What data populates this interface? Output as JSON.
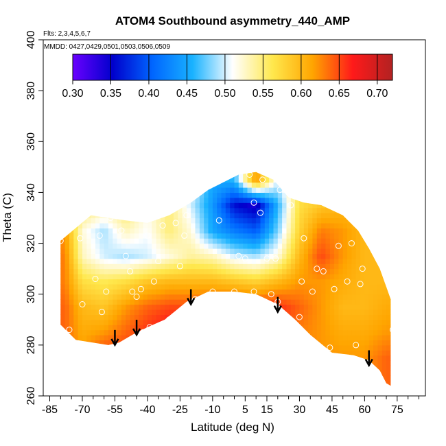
{
  "chart_data": {
    "type": "heatmap",
    "title": "ATOM4 Southbound asymmetry_440_AMP",
    "flights_label": "Flts: 2,3,4,5,6,7",
    "dates_label": "MMDD: 0427,0429,0501,0503,0506,0509",
    "xlabel": "Latitude (deg N)",
    "ylabel": "Theta (C)",
    "xlim": [
      -88,
      88
    ],
    "ylim": [
      260,
      400
    ],
    "x_ticks": [
      -85,
      -70,
      -55,
      -40,
      -25,
      -10,
      5,
      15,
      30,
      45,
      60,
      75
    ],
    "x_minor_ticks": [
      -80,
      -75,
      -65,
      -60,
      -50,
      -45,
      -35,
      -30,
      -20,
      -15,
      -5,
      0,
      10,
      20,
      25,
      35,
      40,
      50,
      55,
      65,
      70,
      80,
      85
    ],
    "y_ticks": [
      260,
      280,
      300,
      320,
      340,
      360,
      380,
      400
    ],
    "colorbar": {
      "range": [
        0.3,
        0.72
      ],
      "ticks": [
        "0.30",
        "0.35",
        "0.40",
        "0.45",
        "0.50",
        "0.55",
        "0.60",
        "0.65",
        "0.70"
      ],
      "tick_values": [
        0.3,
        0.35,
        0.4,
        0.45,
        0.5,
        0.55,
        0.6,
        0.65,
        0.7
      ],
      "colors": [
        "#6a00ff",
        "#0000cc",
        "#0066ff",
        "#19b2ff",
        "#ffffff",
        "#ffe84d",
        "#ffa500",
        "#ff1a1a",
        "#b22222"
      ]
    },
    "field": {
      "lat_grid": [
        -78,
        -70,
        -60,
        -50,
        -40,
        -30,
        -20,
        -10,
        0,
        10,
        20,
        30,
        40,
        50,
        60,
        70
      ],
      "theta_grid": [
        275,
        285,
        295,
        305,
        315,
        325,
        335,
        345
      ],
      "values": [
        [
          0.64,
          0.62,
          0.66,
          0.66,
          0.67,
          0.68,
          0.66,
          0.64,
          0.67,
          0.66,
          0.66,
          0.64,
          0.62,
          0.62,
          0.62,
          0.64
        ],
        [
          0.64,
          0.61,
          0.62,
          0.64,
          0.66,
          0.68,
          0.67,
          0.64,
          0.66,
          0.66,
          0.66,
          0.63,
          0.62,
          0.61,
          0.61,
          0.62
        ],
        [
          0.64,
          0.6,
          0.59,
          0.62,
          0.64,
          0.65,
          0.65,
          0.65,
          0.66,
          0.66,
          0.66,
          0.64,
          0.62,
          0.6,
          0.6,
          0.61
        ],
        [
          0.63,
          0.57,
          0.56,
          0.57,
          0.59,
          0.6,
          0.6,
          0.6,
          0.59,
          0.58,
          0.6,
          0.62,
          0.62,
          0.61,
          0.6,
          0.6
        ],
        [
          0.63,
          0.53,
          0.5,
          0.49,
          0.5,
          0.52,
          0.54,
          0.53,
          0.5,
          0.49,
          0.52,
          0.6,
          0.65,
          0.62,
          0.6,
          0.6
        ],
        [
          0.62,
          0.52,
          0.49,
          0.53,
          0.51,
          0.55,
          0.52,
          0.45,
          0.42,
          0.4,
          0.48,
          0.58,
          0.63,
          0.62,
          0.6,
          0.6
        ],
        [
          0.6,
          0.56,
          0.54,
          0.56,
          0.52,
          0.55,
          0.5,
          0.44,
          0.36,
          0.34,
          0.46,
          0.57,
          0.59,
          0.6,
          0.6,
          0.6
        ],
        [
          0.6,
          0.56,
          0.55,
          0.55,
          0.53,
          0.53,
          0.51,
          0.45,
          0.46,
          0.62,
          0.5,
          0.56,
          0.58,
          0.6,
          0.6,
          0.6
        ]
      ],
      "lower_boundary": [
        [
          -80,
          288
        ],
        [
          -73,
          282
        ],
        [
          -58,
          280
        ],
        [
          -53,
          281
        ],
        [
          -47,
          284
        ],
        [
          -40,
          287
        ],
        [
          -32,
          290
        ],
        [
          -22,
          297
        ],
        [
          -12,
          301
        ],
        [
          0,
          301
        ],
        [
          10,
          300
        ],
        [
          20,
          296
        ],
        [
          28,
          290
        ],
        [
          35,
          284
        ],
        [
          45,
          277
        ],
        [
          55,
          276
        ],
        [
          62,
          274
        ],
        [
          67,
          270
        ],
        [
          70,
          265
        ],
        [
          72,
          264
        ]
      ],
      "upper_boundary": [
        [
          -80,
          321
        ],
        [
          -73,
          326
        ],
        [
          -66,
          331
        ],
        [
          -58,
          330
        ],
        [
          -50,
          329
        ],
        [
          -40,
          328
        ],
        [
          -30,
          331
        ],
        [
          -20,
          336
        ],
        [
          -12,
          341
        ],
        [
          -5,
          344
        ],
        [
          2,
          347
        ],
        [
          10,
          348
        ],
        [
          18,
          345
        ],
        [
          25,
          338
        ],
        [
          32,
          336
        ],
        [
          40,
          335
        ],
        [
          50,
          331
        ],
        [
          57,
          325
        ],
        [
          62,
          318
        ],
        [
          67,
          310
        ],
        [
          72,
          298
        ]
      ]
    },
    "observation_points": [
      {
        "lat": -80,
        "theta": 321
      },
      {
        "lat": -76,
        "theta": 286
      },
      {
        "lat": -71,
        "theta": 322
      },
      {
        "lat": -70,
        "theta": 296
      },
      {
        "lat": -64,
        "theta": 306
      },
      {
        "lat": -62,
        "theta": 323
      },
      {
        "lat": -61,
        "theta": 293
      },
      {
        "lat": -59,
        "theta": 301
      },
      {
        "lat": -57,
        "theta": 330
      },
      {
        "lat": -55,
        "theta": 279
      },
      {
        "lat": -52,
        "theta": 325
      },
      {
        "lat": -50,
        "theta": 315
      },
      {
        "lat": -48,
        "theta": 309
      },
      {
        "lat": -47,
        "theta": 301
      },
      {
        "lat": -45,
        "theta": 299
      },
      {
        "lat": -43,
        "theta": 302
      },
      {
        "lat": -42,
        "theta": 285
      },
      {
        "lat": -40,
        "theta": 323
      },
      {
        "lat": -39,
        "theta": 287
      },
      {
        "lat": -37,
        "theta": 305
      },
      {
        "lat": -35,
        "theta": 313
      },
      {
        "lat": -33,
        "theta": 327
      },
      {
        "lat": -30,
        "theta": 290
      },
      {
        "lat": -27,
        "theta": 328
      },
      {
        "lat": -25,
        "theta": 311
      },
      {
        "lat": -23,
        "theta": 323
      },
      {
        "lat": -22,
        "theta": 331
      },
      {
        "lat": -20,
        "theta": 296
      },
      {
        "lat": -18,
        "theta": 298
      },
      {
        "lat": -10,
        "theta": 301
      },
      {
        "lat": -7,
        "theta": 329
      },
      {
        "lat": 0,
        "theta": 301
      },
      {
        "lat": 2,
        "theta": 315
      },
      {
        "lat": 5,
        "theta": 314
      },
      {
        "lat": 7,
        "theta": 347
      },
      {
        "lat": 9,
        "theta": 336
      },
      {
        "lat": 9,
        "theta": 301
      },
      {
        "lat": 12,
        "theta": 332
      },
      {
        "lat": 13,
        "theta": 345
      },
      {
        "lat": 15,
        "theta": 314
      },
      {
        "lat": 17,
        "theta": 300
      },
      {
        "lat": 19,
        "theta": 314
      },
      {
        "lat": 20,
        "theta": 297
      },
      {
        "lat": 21,
        "theta": 341
      },
      {
        "lat": 26,
        "theta": 335
      },
      {
        "lat": 30,
        "theta": 291
      },
      {
        "lat": 31,
        "theta": 305
      },
      {
        "lat": 32,
        "theta": 322
      },
      {
        "lat": 36,
        "theta": 301
      },
      {
        "lat": 38,
        "theta": 310
      },
      {
        "lat": 41,
        "theta": 309
      },
      {
        "lat": 44,
        "theta": 279
      },
      {
        "lat": 46,
        "theta": 302
      },
      {
        "lat": 48,
        "theta": 319
      },
      {
        "lat": 52,
        "theta": 305
      },
      {
        "lat": 54,
        "theta": 320
      },
      {
        "lat": 56,
        "theta": 280
      },
      {
        "lat": 58,
        "theta": 304
      },
      {
        "lat": 59,
        "theta": 310
      },
      {
        "lat": 65,
        "theta": 333
      },
      {
        "lat": 73,
        "theta": 286
      }
    ],
    "arrows": [
      {
        "lat": -55,
        "theta": 280
      },
      {
        "lat": -45,
        "theta": 284
      },
      {
        "lat": -20,
        "theta": 296
      },
      {
        "lat": 20,
        "theta": 293
      },
      {
        "lat": 62,
        "theta": 272
      }
    ]
  }
}
